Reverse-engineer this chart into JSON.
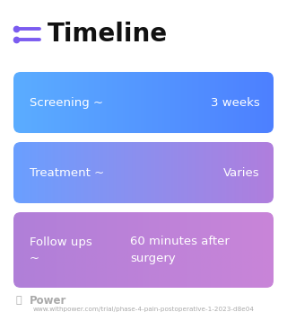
{
  "title": "Timeline",
  "title_fontsize": 20,
  "title_color": "#111111",
  "title_icon_color": "#7b5cf0",
  "background_color": "#ffffff",
  "rows": [
    {
      "label": "Screening ~",
      "value": "3 weeks",
      "color_left": "#5badff",
      "color_right": "#4d80ff",
      "text_color": "#ffffff",
      "label2": "",
      "value2": ""
    },
    {
      "label": "Treatment ~",
      "value": "Varies",
      "color_left": "#6a9fff",
      "color_right": "#b07edd",
      "text_color": "#ffffff",
      "label2": "",
      "value2": ""
    },
    {
      "label": "Follow ups",
      "value": "60 minutes after",
      "color_left": "#b07fd8",
      "color_right": "#c985d8",
      "text_color": "#ffffff",
      "label2": "~",
      "value2": "surgery"
    }
  ],
  "footer_logo_color": "#aaaaaa",
  "footer_text": "www.withpower.com/trial/phase-4-pain-postoperative-1-2023-d8e04",
  "footer_fontsize": 5.2,
  "footer_color": "#aaaaaa"
}
